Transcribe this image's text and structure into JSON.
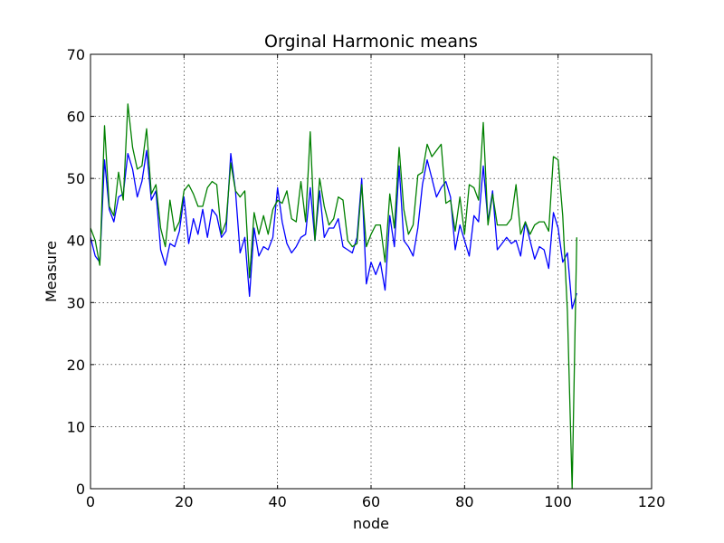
{
  "chart_data": {
    "type": "line",
    "title": "Orginal Harmonic means",
    "xlabel": "node",
    "ylabel": "Measure",
    "xlim": [
      0,
      120
    ],
    "ylim": [
      0,
      70
    ],
    "xticks": [
      0,
      20,
      40,
      60,
      80,
      100,
      120
    ],
    "yticks": [
      0,
      10,
      20,
      30,
      40,
      50,
      60,
      70
    ],
    "grid": true,
    "series": [
      {
        "color": "#0000ff",
        "x": [
          0,
          1,
          2,
          3,
          4,
          5,
          6,
          7,
          8,
          9,
          10,
          11,
          12,
          13,
          14,
          15,
          16,
          17,
          18,
          19,
          20,
          21,
          22,
          23,
          24,
          25,
          26,
          27,
          28,
          29,
          30,
          31,
          32,
          33,
          34,
          35,
          36,
          37,
          38,
          39,
          40,
          41,
          42,
          43,
          44,
          45,
          46,
          47,
          48,
          49,
          50,
          51,
          52,
          53,
          54,
          55,
          56,
          57,
          58,
          59,
          60,
          61,
          62,
          63,
          64,
          65,
          66,
          67,
          68,
          69,
          70,
          71,
          72,
          73,
          74,
          75,
          76,
          77,
          78,
          79,
          80,
          81,
          82,
          83,
          84,
          85,
          86,
          87,
          88,
          89,
          90,
          91,
          92,
          93,
          94,
          95,
          96,
          97,
          98,
          99,
          100,
          101,
          102,
          103,
          104
        ],
        "values": [
          40.5,
          37.5,
          36.5,
          53,
          45,
          43,
          47,
          47.5,
          54,
          51.5,
          47,
          49.5,
          54.5,
          46.5,
          48,
          38.5,
          36,
          39.5,
          39,
          41.5,
          47,
          39.5,
          43.5,
          41,
          45,
          40.5,
          45,
          44,
          40.5,
          41.5,
          54,
          48,
          38,
          40.5,
          31,
          42,
          37.5,
          39,
          38.5,
          40.5,
          48.5,
          43,
          39.5,
          38,
          39,
          40.5,
          41,
          48.5,
          40,
          48,
          40.5,
          42,
          42,
          43.5,
          39,
          38.5,
          38,
          40.5,
          50,
          33,
          36.5,
          34.5,
          36.5,
          32,
          44,
          39,
          52,
          40,
          39,
          37.5,
          42,
          49,
          53,
          50,
          47,
          48.5,
          49.5,
          47,
          38.5,
          42.5,
          40,
          37.5,
          44,
          43,
          52,
          43,
          48,
          38.5,
          39.5,
          40.5,
          39.5,
          40,
          37.5,
          43,
          40,
          37,
          39,
          38.5,
          35.5,
          44.5,
          42,
          36.5,
          38,
          29,
          31.5
        ]
      },
      {
        "color": "#008000",
        "x": [
          0,
          1,
          2,
          3,
          4,
          5,
          6,
          7,
          8,
          9,
          10,
          11,
          12,
          13,
          14,
          15,
          16,
          17,
          18,
          19,
          20,
          21,
          22,
          23,
          24,
          25,
          26,
          27,
          28,
          29,
          30,
          31,
          32,
          33,
          34,
          35,
          36,
          37,
          38,
          39,
          40,
          41,
          42,
          43,
          44,
          45,
          46,
          47,
          48,
          49,
          50,
          51,
          52,
          53,
          54,
          55,
          56,
          57,
          58,
          59,
          60,
          61,
          62,
          63,
          64,
          65,
          66,
          67,
          68,
          69,
          70,
          71,
          72,
          73,
          74,
          75,
          76,
          77,
          78,
          79,
          80,
          81,
          82,
          83,
          84,
          85,
          86,
          87,
          88,
          89,
          90,
          91,
          92,
          93,
          94,
          95,
          96,
          97,
          98,
          99,
          100,
          101,
          102,
          103,
          104
        ],
        "values": [
          42,
          40,
          36,
          58.5,
          45.5,
          44,
          51,
          46.5,
          62,
          55,
          51.5,
          52,
          58,
          47.5,
          49,
          42,
          39,
          46.5,
          41.5,
          43,
          48,
          49,
          47.5,
          45.5,
          45.5,
          48.5,
          49.5,
          49,
          41,
          43,
          52.5,
          48,
          47,
          48,
          34,
          44.5,
          41,
          44,
          41,
          45,
          46.5,
          46,
          48,
          43.5,
          43,
          49.5,
          43,
          57.5,
          40,
          50,
          45.5,
          42.5,
          43.5,
          47,
          46.5,
          40,
          39,
          39.5,
          49,
          39,
          41,
          42.5,
          42.5,
          36.5,
          47.5,
          42,
          55,
          45,
          41,
          42.5,
          50.5,
          51,
          55.5,
          53.5,
          54.5,
          55.5,
          46,
          46.5,
          41.5,
          47,
          41,
          49,
          48.5,
          46.5,
          59,
          42.5,
          47.5,
          42.5,
          42.5,
          42.5,
          43.5,
          49,
          41,
          43,
          41,
          42.5,
          43,
          43,
          41.5,
          53.5,
          53,
          44,
          28.5,
          0,
          40.5
        ]
      }
    ]
  }
}
